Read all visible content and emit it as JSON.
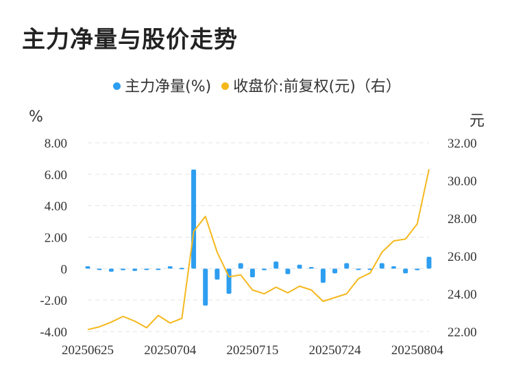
{
  "title": "主力净量与股价走势",
  "legend": [
    {
      "label": "主力净量(%)",
      "color": "#2e9ef0"
    },
    {
      "label": "收盘价:前复权(元)（右）",
      "color": "#f5b81c"
    }
  ],
  "units": {
    "left": "%",
    "right": "元"
  },
  "chart_data": {
    "type": "bar+line",
    "title": "主力净量与股价走势",
    "x": [
      "20250625",
      "20250626",
      "20250627",
      "20250630",
      "20250701",
      "20250702",
      "20250703",
      "20250704",
      "20250707",
      "20250708",
      "20250709",
      "20250710",
      "20250711",
      "20250714",
      "20250715",
      "20250716",
      "20250717",
      "20250718",
      "20250721",
      "20250722",
      "20250723",
      "20250724",
      "20250725",
      "20250728",
      "20250729",
      "20250730",
      "20250731",
      "20250801",
      "20250804",
      "20250805"
    ],
    "x_tick_labels": [
      "20250625",
      "20250704",
      "20250715",
      "20250724",
      "20250804"
    ],
    "series": [
      {
        "name": "主力净量(%)",
        "type": "bar",
        "axis": "left",
        "color": "#2e9ef0",
        "values": [
          0.15,
          -0.05,
          -0.2,
          -0.1,
          -0.15,
          -0.05,
          -0.05,
          0.15,
          0.05,
          6.3,
          -2.35,
          -0.7,
          -1.6,
          0.35,
          -0.55,
          -0.1,
          0.45,
          -0.35,
          0.25,
          0.1,
          -0.9,
          -0.3,
          0.35,
          -0.05,
          -0.05,
          0.35,
          0.15,
          -0.3,
          -0.1,
          0.75
        ]
      },
      {
        "name": "收盘价:前复权(元)（右）",
        "type": "line",
        "axis": "right",
        "color": "#f5b81c",
        "values": [
          22.1,
          22.25,
          22.5,
          22.8,
          22.55,
          22.2,
          22.85,
          22.45,
          22.7,
          27.3,
          28.1,
          26.2,
          24.9,
          25.0,
          24.2,
          24.0,
          24.35,
          24.05,
          24.4,
          24.2,
          23.6,
          23.8,
          24.0,
          24.8,
          25.1,
          26.2,
          26.8,
          26.9,
          27.7,
          30.6
        ]
      }
    ],
    "y_left": {
      "ylim": [
        -4,
        8
      ],
      "ticks": [
        "-4.00",
        "-2.00",
        "0",
        "2.00",
        "4.00",
        "6.00",
        "8.00"
      ]
    },
    "y_right": {
      "ylim": [
        22,
        32
      ],
      "ticks": [
        "22.00",
        "24.00",
        "26.00",
        "28.00",
        "30.00",
        "32.00"
      ]
    },
    "grid": true,
    "legend_position": "top"
  }
}
